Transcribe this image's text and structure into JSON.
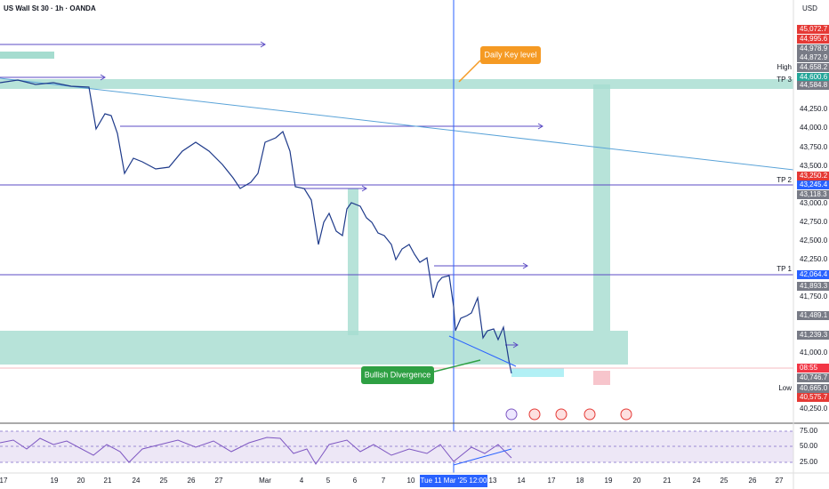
{
  "header": {
    "symbol": "US Wall St 30 · 1h · OANDA",
    "currency": "USD"
  },
  "price_axis": [
    "44,250.0",
    "44,000.0",
    "43,750.0",
    "43,500.0",
    "43,000.0",
    "42,750.0",
    "42,500.0",
    "42,250.0",
    "41,750.0",
    "41,000.0",
    "40,250.0"
  ],
  "price_tags": [
    "45,072.7",
    "44,995.6",
    "44,978.9",
    "44,872.9",
    "44,658.2",
    "44,600.6",
    "44,584.8",
    "43,250.2",
    "43,245.4",
    "43,118.3",
    "42,064.4",
    "41,893.3",
    "41,489.1",
    "41,239.3",
    "08:55",
    "40,746.7",
    "40,665.0",
    "40,575.7"
  ],
  "level_labels": [
    "High",
    "TP 3",
    "TP 2",
    "TP 1",
    "Low"
  ],
  "rsi_axis": [
    "75.00",
    "50.00",
    "25.00"
  ],
  "dates": [
    "17",
    "19",
    "20",
    "21",
    "24",
    "25",
    "26",
    "27",
    "Mar",
    "4",
    "5",
    "6",
    "7",
    "10",
    "13",
    "14",
    "17",
    "18",
    "19",
    "20",
    "21",
    "24",
    "25",
    "26",
    "27"
  ],
  "crosshair_date": "Tue 11 Mar '25   12:00",
  "annotations": {
    "key_level": "Daily Key level",
    "divergence": "Bullish Divergence"
  }
}
